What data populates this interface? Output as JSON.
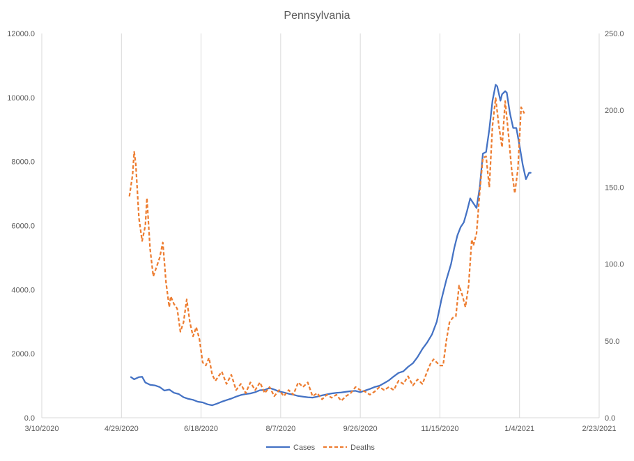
{
  "chart_data": {
    "type": "line",
    "title": "Pennsylvania",
    "xlabel": "",
    "ylabel": "",
    "x_ticks": [
      "3/10/2020",
      "4/29/2020",
      "6/18/2020",
      "8/7/2020",
      "9/26/2020",
      "11/15/2020",
      "1/4/2021",
      "2/23/2021"
    ],
    "y_left_ticks": [
      "0.0",
      "2000.0",
      "4000.0",
      "6000.0",
      "8000.0",
      "10000.0",
      "12000.0"
    ],
    "y_right_ticks": [
      "0.0",
      "50.0",
      "100.0",
      "150.0",
      "200.0",
      "250.0"
    ],
    "ylim_left": [
      0,
      12000
    ],
    "ylim_right": [
      0,
      250
    ],
    "grid": "vertical",
    "legend": "bottom",
    "series": [
      {
        "name": "Cases",
        "axis": "left",
        "color": "#4472C4",
        "style": "solid",
        "points": [
          [
            "2020-05-05",
            1270
          ],
          [
            "2020-05-07",
            1200
          ],
          [
            "2020-05-10",
            1270
          ],
          [
            "2020-05-12",
            1280
          ],
          [
            "2020-05-14",
            1100
          ],
          [
            "2020-05-17",
            1030
          ],
          [
            "2020-05-20",
            1010
          ],
          [
            "2020-05-23",
            960
          ],
          [
            "2020-05-26",
            850
          ],
          [
            "2020-05-29",
            880
          ],
          [
            "2020-06-01",
            780
          ],
          [
            "2020-06-04",
            740
          ],
          [
            "2020-06-07",
            640
          ],
          [
            "2020-06-10",
            590
          ],
          [
            "2020-06-13",
            560
          ],
          [
            "2020-06-16",
            500
          ],
          [
            "2020-06-19",
            480
          ],
          [
            "2020-06-22",
            420
          ],
          [
            "2020-06-25",
            390
          ],
          [
            "2020-06-28",
            440
          ],
          [
            "2020-07-01",
            500
          ],
          [
            "2020-07-04",
            550
          ],
          [
            "2020-07-07",
            600
          ],
          [
            "2020-07-10",
            660
          ],
          [
            "2020-07-13",
            710
          ],
          [
            "2020-07-16",
            740
          ],
          [
            "2020-07-19",
            760
          ],
          [
            "2020-07-22",
            800
          ],
          [
            "2020-07-25",
            860
          ],
          [
            "2020-07-28",
            870
          ],
          [
            "2020-07-31",
            930
          ],
          [
            "2020-08-03",
            880
          ],
          [
            "2020-08-06",
            820
          ],
          [
            "2020-08-09",
            790
          ],
          [
            "2020-08-12",
            750
          ],
          [
            "2020-08-15",
            720
          ],
          [
            "2020-08-18",
            680
          ],
          [
            "2020-08-21",
            660
          ],
          [
            "2020-08-24",
            640
          ],
          [
            "2020-08-27",
            630
          ],
          [
            "2020-08-30",
            660
          ],
          [
            "2020-09-02",
            700
          ],
          [
            "2020-09-05",
            730
          ],
          [
            "2020-09-08",
            760
          ],
          [
            "2020-09-11",
            780
          ],
          [
            "2020-09-14",
            790
          ],
          [
            "2020-09-17",
            810
          ],
          [
            "2020-09-20",
            830
          ],
          [
            "2020-09-23",
            840
          ],
          [
            "2020-09-26",
            800
          ],
          [
            "2020-09-29",
            850
          ],
          [
            "2020-10-02",
            900
          ],
          [
            "2020-10-05",
            960
          ],
          [
            "2020-10-08",
            1000
          ],
          [
            "2020-10-11",
            1080
          ],
          [
            "2020-10-14",
            1170
          ],
          [
            "2020-10-17",
            1290
          ],
          [
            "2020-10-20",
            1400
          ],
          [
            "2020-10-23",
            1450
          ],
          [
            "2020-10-26",
            1590
          ],
          [
            "2020-10-29",
            1700
          ],
          [
            "2020-11-01",
            1900
          ],
          [
            "2020-11-04",
            2150
          ],
          [
            "2020-11-07",
            2350
          ],
          [
            "2020-11-10",
            2600
          ],
          [
            "2020-11-13",
            3000
          ],
          [
            "2020-11-16",
            3700
          ],
          [
            "2020-11-19",
            4300
          ],
          [
            "2020-11-22",
            4800
          ],
          [
            "2020-11-24",
            5300
          ],
          [
            "2020-11-26",
            5700
          ],
          [
            "2020-11-28",
            5950
          ],
          [
            "2020-11-30",
            6100
          ],
          [
            "2020-12-02",
            6450
          ],
          [
            "2020-12-04",
            6850
          ],
          [
            "2020-12-06",
            6700
          ],
          [
            "2020-12-08",
            6550
          ],
          [
            "2020-12-10",
            7200
          ],
          [
            "2020-12-12",
            8250
          ],
          [
            "2020-12-14",
            8300
          ],
          [
            "2020-12-16",
            9000
          ],
          [
            "2020-12-18",
            9900
          ],
          [
            "2020-12-20",
            10400
          ],
          [
            "2020-12-21",
            10350
          ],
          [
            "2020-12-23",
            9900
          ],
          [
            "2020-12-24",
            10100
          ],
          [
            "2020-12-26",
            10200
          ],
          [
            "2020-12-27",
            10150
          ],
          [
            "2020-12-29",
            9500
          ],
          [
            "2020-12-31",
            9050
          ],
          [
            "2021-01-02",
            9050
          ],
          [
            "2021-01-04",
            8500
          ],
          [
            "2021-01-06",
            7900
          ],
          [
            "2021-01-08",
            7450
          ],
          [
            "2021-01-10",
            7650
          ],
          [
            "2021-01-11",
            7650
          ]
        ]
      },
      {
        "name": "Deaths",
        "axis": "right",
        "color": "#ED7D31",
        "style": "dashed",
        "points": [
          [
            "2020-05-04",
            144
          ],
          [
            "2020-05-06",
            158
          ],
          [
            "2020-05-07",
            173
          ],
          [
            "2020-05-08",
            165
          ],
          [
            "2020-05-10",
            130
          ],
          [
            "2020-05-12",
            115
          ],
          [
            "2020-05-14",
            125
          ],
          [
            "2020-05-15",
            143
          ],
          [
            "2020-05-17",
            110
          ],
          [
            "2020-05-19",
            92
          ],
          [
            "2020-05-21",
            98
          ],
          [
            "2020-05-23",
            104
          ],
          [
            "2020-05-25",
            114
          ],
          [
            "2020-05-27",
            88
          ],
          [
            "2020-05-29",
            72
          ],
          [
            "2020-05-30",
            79
          ],
          [
            "2020-06-01",
            74
          ],
          [
            "2020-06-03",
            71
          ],
          [
            "2020-06-05",
            56
          ],
          [
            "2020-06-07",
            62
          ],
          [
            "2020-06-09",
            77
          ],
          [
            "2020-06-11",
            62
          ],
          [
            "2020-06-13",
            53
          ],
          [
            "2020-06-15",
            59
          ],
          [
            "2020-06-17",
            51
          ],
          [
            "2020-06-19",
            36
          ],
          [
            "2020-06-21",
            34
          ],
          [
            "2020-06-23",
            39
          ],
          [
            "2020-06-25",
            28
          ],
          [
            "2020-06-27",
            24
          ],
          [
            "2020-06-29",
            27
          ],
          [
            "2020-07-01",
            30
          ],
          [
            "2020-07-04",
            22
          ],
          [
            "2020-07-07",
            28
          ],
          [
            "2020-07-10",
            18
          ],
          [
            "2020-07-13",
            22
          ],
          [
            "2020-07-16",
            16
          ],
          [
            "2020-07-19",
            23
          ],
          [
            "2020-07-22",
            18
          ],
          [
            "2020-07-25",
            23
          ],
          [
            "2020-07-28",
            16
          ],
          [
            "2020-07-31",
            20
          ],
          [
            "2020-08-03",
            14
          ],
          [
            "2020-08-06",
            18
          ],
          [
            "2020-08-09",
            14
          ],
          [
            "2020-08-12",
            18
          ],
          [
            "2020-08-15",
            15
          ],
          [
            "2020-08-18",
            23
          ],
          [
            "2020-08-21",
            20
          ],
          [
            "2020-08-24",
            23
          ],
          [
            "2020-08-27",
            14
          ],
          [
            "2020-08-30",
            16
          ],
          [
            "2020-09-02",
            12
          ],
          [
            "2020-09-05",
            15
          ],
          [
            "2020-09-08",
            13
          ],
          [
            "2020-09-11",
            15
          ],
          [
            "2020-09-14",
            11
          ],
          [
            "2020-09-17",
            14
          ],
          [
            "2020-09-20",
            16
          ],
          [
            "2020-09-23",
            20
          ],
          [
            "2020-09-26",
            18
          ],
          [
            "2020-09-29",
            17
          ],
          [
            "2020-10-02",
            15
          ],
          [
            "2020-10-05",
            17
          ],
          [
            "2020-10-08",
            20
          ],
          [
            "2020-10-11",
            18
          ],
          [
            "2020-10-14",
            20
          ],
          [
            "2020-10-17",
            18
          ],
          [
            "2020-10-20",
            24
          ],
          [
            "2020-10-23",
            22
          ],
          [
            "2020-10-26",
            27
          ],
          [
            "2020-10-29",
            21
          ],
          [
            "2020-11-01",
            25
          ],
          [
            "2020-11-04",
            22
          ],
          [
            "2020-11-07",
            30
          ],
          [
            "2020-11-09",
            35
          ],
          [
            "2020-11-11",
            38
          ],
          [
            "2020-11-13",
            36
          ],
          [
            "2020-11-15",
            34
          ],
          [
            "2020-11-17",
            34
          ],
          [
            "2020-11-19",
            50
          ],
          [
            "2020-11-21",
            62
          ],
          [
            "2020-11-23",
            65
          ],
          [
            "2020-11-25",
            66
          ],
          [
            "2020-11-27",
            86
          ],
          [
            "2020-11-29",
            80
          ],
          [
            "2020-12-01",
            72
          ],
          [
            "2020-12-03",
            86
          ],
          [
            "2020-12-05",
            116
          ],
          [
            "2020-12-06",
            112
          ],
          [
            "2020-12-08",
            120
          ],
          [
            "2020-12-10",
            147
          ],
          [
            "2020-12-12",
            169
          ],
          [
            "2020-12-14",
            170
          ],
          [
            "2020-12-16",
            150
          ],
          [
            "2020-12-18",
            190
          ],
          [
            "2020-12-20",
            208
          ],
          [
            "2020-12-22",
            190
          ],
          [
            "2020-12-24",
            176
          ],
          [
            "2020-12-26",
            206
          ],
          [
            "2020-12-28",
            185
          ],
          [
            "2020-12-30",
            162
          ],
          [
            "2021-01-01",
            146
          ],
          [
            "2021-01-03",
            162
          ],
          [
            "2021-01-05",
            202
          ],
          [
            "2021-01-07",
            198
          ]
        ]
      }
    ]
  }
}
